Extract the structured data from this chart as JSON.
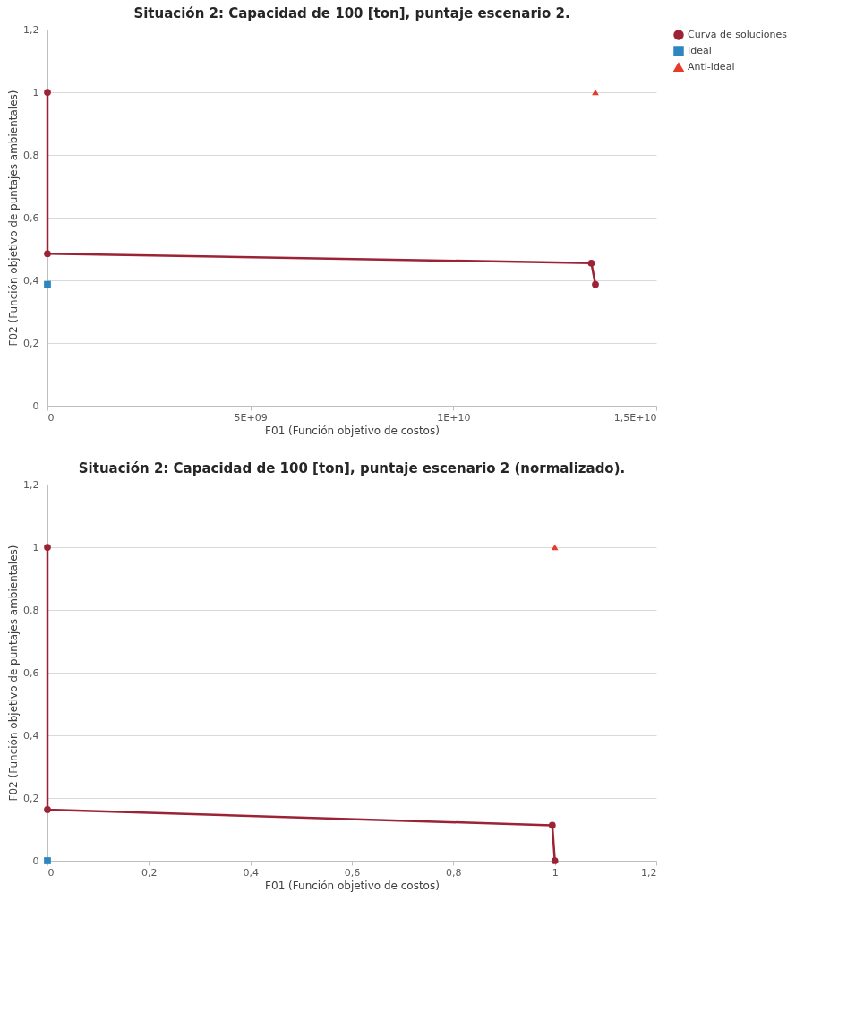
{
  "chart_data": [
    {
      "type": "line",
      "title": "Situación 2: Capacidad de 100 [ton], puntaje escenario 2.",
      "xlabel": "F01 (Función objetivo de costos)",
      "ylabel": "F02 (Función objetivo de puntajes ambientales)",
      "xlim": [
        0,
        15000000000
      ],
      "xticks": [
        0,
        {
          "value": 5000000000,
          "label": "5E+09"
        },
        {
          "value": 10000000000,
          "label": "1E+10"
        },
        {
          "value": 15000000000,
          "label": "1,5E+10"
        }
      ],
      "ylim": [
        0,
        1.2
      ],
      "yticks": [
        0,
        {
          "value": 0.2,
          "label": "0,2"
        },
        {
          "value": 0.4,
          "label": "0,4"
        },
        {
          "value": 0.6,
          "label": "0,6"
        },
        {
          "value": 0.8,
          "label": "0,8"
        },
        1,
        {
          "value": 1.2,
          "label": "1,2"
        }
      ],
      "grid": "y",
      "legend": "right",
      "line_style": "solid",
      "series": [
        {
          "name": "Curva de soluciones",
          "marker": "circle",
          "color": "#9b2335",
          "x": [
            0,
            0,
            13400000000,
            13500000000
          ],
          "values": [
            1,
            0.485,
            0.455,
            0.387
          ]
        },
        {
          "name": "Ideal",
          "marker": "square",
          "color": "#2e86c1",
          "x": [
            0
          ],
          "values": [
            0.387
          ]
        },
        {
          "name": "Anti-ideal",
          "marker": "triangle",
          "color": "#e8392b",
          "x": [
            13500000000
          ],
          "values": [
            1
          ]
        }
      ]
    },
    {
      "type": "line",
      "title": "Situación 2: Capacidad de 100 [ton], puntaje escenario 2 (normalizado).",
      "xlabel": "F01 (Función objetivo de costos)",
      "ylabel": "F02 (Función objetivo de puntajes ambientales)",
      "xlim": [
        0,
        1.2
      ],
      "xticks": [
        0,
        {
          "value": 0.2,
          "label": "0,2"
        },
        {
          "value": 0.4,
          "label": "0,4"
        },
        {
          "value": 0.6,
          "label": "0,6"
        },
        {
          "value": 0.8,
          "label": "0,8"
        },
        1,
        {
          "value": 1.2,
          "label": "1,2"
        }
      ],
      "ylim": [
        0,
        1.2
      ],
      "yticks": [
        0,
        {
          "value": 0.2,
          "label": "0,2"
        },
        {
          "value": 0.4,
          "label": "0,4"
        },
        {
          "value": 0.6,
          "label": "0,6"
        },
        {
          "value": 0.8,
          "label": "0,8"
        },
        1,
        {
          "value": 1.2,
          "label": "1,2"
        }
      ],
      "grid": "y",
      "legend": "right",
      "line_style": "solid",
      "series": [
        {
          "name": "Curva de soluciones",
          "marker": "circle",
          "color": "#9b2335",
          "x": [
            0,
            0,
            0.995,
            1
          ],
          "values": [
            1,
            0.163,
            0.113,
            0
          ]
        },
        {
          "name": "Ideal",
          "marker": "square",
          "color": "#2e86c1",
          "x": [
            0
          ],
          "values": [
            0
          ]
        },
        {
          "name": "Anti-ideal",
          "marker": "triangle",
          "color": "#e8392b",
          "x": [
            1
          ],
          "values": [
            1
          ]
        }
      ]
    }
  ]
}
